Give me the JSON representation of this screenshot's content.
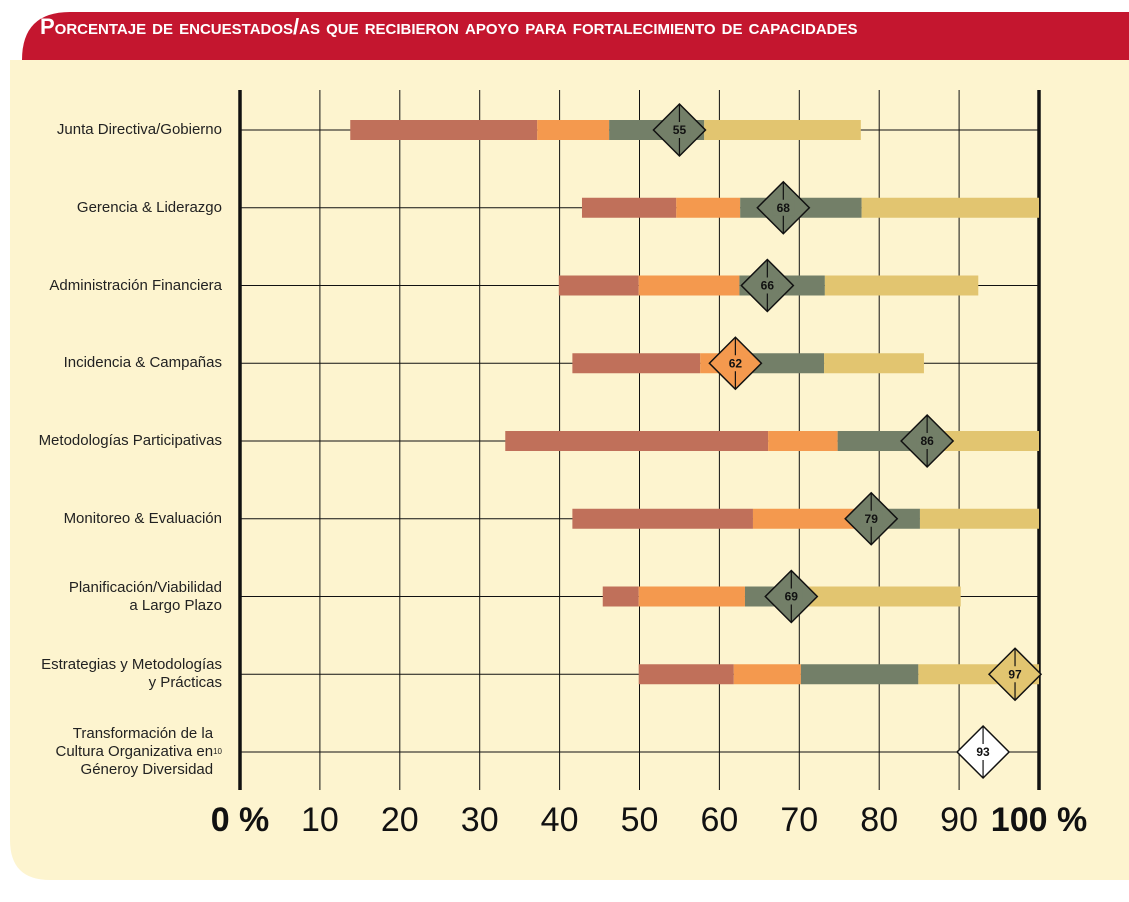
{
  "chart_data": {
    "type": "floating-stacked-bar",
    "title": "Porcentaje de encuestados/as que recibieron apoyo para fortalecimiento de capacidades",
    "categories": [
      "Junta Directiva/Gobierno",
      "Gerencia & Liderazgo",
      "Administración Financiera",
      "Incidencia & Campañas",
      "Metodologías Participativas",
      "Monitoreo & Evaluación",
      "Planificación/Viabilidad\na Largo Plazo",
      "Estrategias y Metodologías\ny Prácticas",
      "Transformación de la\nCultura Organizativa en\nGéneroy Diversidad"
    ],
    "category_footnotes": [
      null,
      null,
      null,
      null,
      null,
      null,
      null,
      null,
      "10"
    ],
    "starts": [
      13.8,
      42.8,
      39.9,
      41.6,
      33.2,
      41.6,
      45.4,
      49.9,
      null
    ],
    "series": [
      {
        "color": "#c0705a",
        "values": [
          23.4,
          11.8,
          10,
          16,
          32.9,
          22.6,
          4.5,
          11.9,
          null
        ]
      },
      {
        "color": "#f4994e",
        "values": [
          9,
          8,
          12.6,
          5.1,
          8.7,
          13.4,
          13.3,
          8.4,
          null
        ]
      },
      {
        "color": "#737f68",
        "values": [
          11.9,
          15.2,
          10.7,
          10.4,
          12.2,
          7.5,
          6,
          14.7,
          null
        ]
      },
      {
        "color": "#e2c570",
        "values": [
          19.6,
          22.2,
          19.2,
          12.5,
          13,
          14.9,
          21,
          15.1,
          null
        ]
      }
    ],
    "markers": [
      55,
      68,
      66,
      62,
      86,
      79,
      69,
      97,
      93
    ],
    "xlim": [
      0,
      100
    ],
    "xticks": [
      {
        "value": 0,
        "label": "0 %"
      },
      10,
      20,
      30,
      40,
      50,
      60,
      70,
      80,
      90,
      {
        "value": 100,
        "label": "100 %"
      }
    ],
    "grid": true
  }
}
